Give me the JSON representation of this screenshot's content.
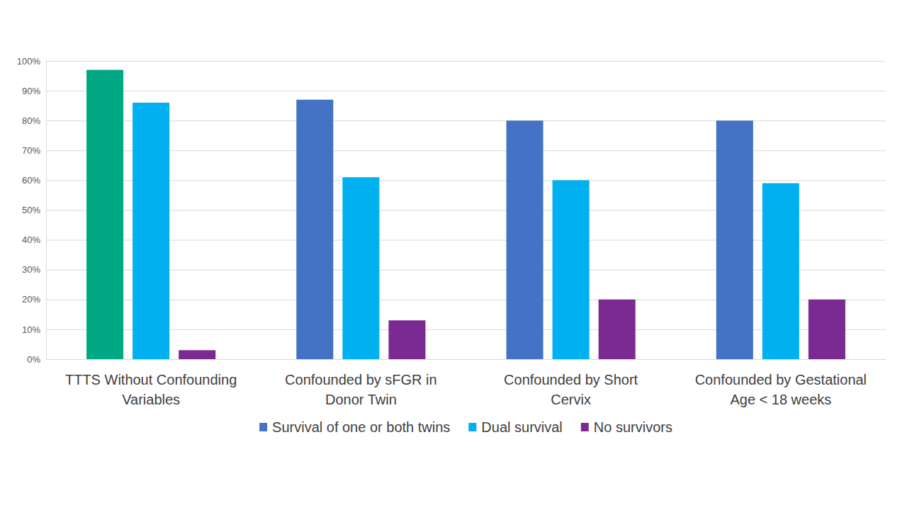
{
  "chart_data": {
    "type": "bar",
    "categories": [
      "TTTS Without Confounding Variables",
      "Confounded by sFGR in Donor Twin",
      "Confounded by Short Cervix",
      "Confounded by Gestational Age < 18 weeks"
    ],
    "series": [
      {
        "name": "Survival of one or both twins",
        "color": "#4472c4",
        "colors": [
          "#00a884",
          "#4472c4",
          "#4472c4",
          "#4472c4"
        ],
        "values": [
          97,
          87,
          80,
          80
        ]
      },
      {
        "name": "Dual survival",
        "color": "#00b0f0",
        "values": [
          86,
          61,
          60,
          59
        ]
      },
      {
        "name": "No survivors",
        "color": "#7a2a90",
        "values": [
          3,
          13,
          20,
          20
        ]
      }
    ],
    "ylim": [
      0,
      100
    ],
    "yticks": [
      {
        "value": 0,
        "label": "0%"
      },
      {
        "value": 10,
        "label": "10%"
      },
      {
        "value": 20,
        "label": "20%"
      },
      {
        "value": 30,
        "label": "30%"
      },
      {
        "value": 40,
        "label": "40%"
      },
      {
        "value": 50,
        "label": "50%"
      },
      {
        "value": 60,
        "label": "60%"
      },
      {
        "value": 70,
        "label": "70%"
      },
      {
        "value": 80,
        "label": "80%"
      },
      {
        "value": 90,
        "label": "90%"
      },
      {
        "value": 100,
        "label": "100%"
      }
    ],
    "grid": true,
    "legend": "bottom"
  }
}
